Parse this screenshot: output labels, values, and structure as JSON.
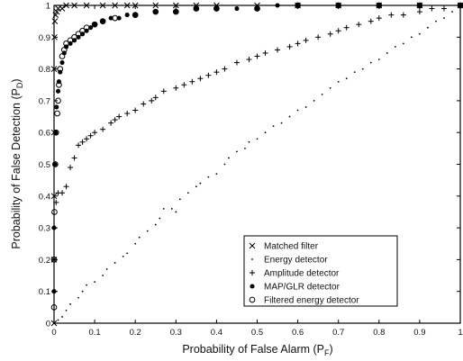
{
  "chart_data": {
    "type": "scatter",
    "title": "",
    "xlabel": {
      "main": "Probability of False Alarm (P",
      "sub": "F",
      "end": ")"
    },
    "ylabel": {
      "main": "Probability of False Detection (P",
      "sub": "D",
      "end": ")"
    },
    "xlim": [
      0,
      1
    ],
    "ylim": [
      0,
      1
    ],
    "grid": false,
    "legend_position": "bottom-right",
    "x_ticks": [
      {
        "v": 0,
        "label": "0"
      },
      {
        "v": 0.1,
        "label": "0.1"
      },
      {
        "v": 0.2,
        "label": "0.2"
      },
      {
        "v": 0.3,
        "label": "0.3"
      },
      {
        "v": 0.4,
        "label": "0.4"
      },
      {
        "v": 0.5,
        "label": "0.5"
      },
      {
        "v": 0.6,
        "label": "0.6"
      },
      {
        "v": 0.7,
        "label": "0.7"
      },
      {
        "v": 0.8,
        "label": "0.8"
      },
      {
        "v": 0.9,
        "label": "0.9"
      },
      {
        "v": 1,
        "label": "1"
      }
    ],
    "y_ticks": [
      {
        "v": 0,
        "label": "0"
      },
      {
        "v": 0.1,
        "label": "0.1"
      },
      {
        "v": 0.2,
        "label": "0.2"
      },
      {
        "v": 0.3,
        "label": "0.3"
      },
      {
        "v": 0.4,
        "label": "0.4"
      },
      {
        "v": 0.5,
        "label": "0.5"
      },
      {
        "v": 0.6,
        "label": "0.6"
      },
      {
        "v": 0.7,
        "label": "0.7"
      },
      {
        "v": 0.8,
        "label": "0.8"
      },
      {
        "v": 0.9,
        "label": "0.9"
      },
      {
        "v": 1,
        "label": "1"
      }
    ],
    "series": [
      {
        "name": "Matched filter",
        "marker": "x",
        "points": [
          [
            0.0,
            0.0
          ],
          [
            0.0,
            0.2
          ],
          [
            0.0,
            0.4
          ],
          [
            0.0,
            0.6
          ],
          [
            0.0,
            0.8
          ],
          [
            0.001,
            0.9
          ],
          [
            0.002,
            0.95
          ],
          [
            0.004,
            0.97
          ],
          [
            0.007,
            0.98
          ],
          [
            0.01,
            0.99
          ],
          [
            0.02,
            0.99
          ],
          [
            0.03,
            1.0
          ],
          [
            0.05,
            1.0
          ],
          [
            0.08,
            1.0
          ],
          [
            0.12,
            1.0
          ],
          [
            0.15,
            1.0
          ],
          [
            0.18,
            1.0
          ],
          [
            0.2,
            1.0
          ],
          [
            0.25,
            1.0
          ],
          [
            0.3,
            1.0
          ],
          [
            0.35,
            1.0
          ],
          [
            0.4,
            1.0
          ],
          [
            0.5,
            1.0
          ],
          [
            0.6,
            1.0
          ],
          [
            0.7,
            1.0
          ],
          [
            0.8,
            1.0
          ],
          [
            0.9,
            1.0
          ],
          [
            1.0,
            1.0
          ]
        ]
      },
      {
        "name": "Energy detector",
        "marker": "dot",
        "points": [
          [
            0.0,
            0.0
          ],
          [
            0.01,
            0.01
          ],
          [
            0.02,
            0.02
          ],
          [
            0.03,
            0.04
          ],
          [
            0.04,
            0.06
          ],
          [
            0.06,
            0.08
          ],
          [
            0.07,
            0.1
          ],
          [
            0.08,
            0.12
          ],
          [
            0.1,
            0.13
          ],
          [
            0.12,
            0.15
          ],
          [
            0.13,
            0.17
          ],
          [
            0.15,
            0.19
          ],
          [
            0.17,
            0.21
          ],
          [
            0.18,
            0.22
          ],
          [
            0.2,
            0.25
          ],
          [
            0.21,
            0.27
          ],
          [
            0.23,
            0.29
          ],
          [
            0.25,
            0.31
          ],
          [
            0.26,
            0.33
          ],
          [
            0.27,
            0.36
          ],
          [
            0.29,
            0.36
          ],
          [
            0.3,
            0.35
          ],
          [
            0.31,
            0.39
          ],
          [
            0.33,
            0.41
          ],
          [
            0.35,
            0.43
          ],
          [
            0.36,
            0.44
          ],
          [
            0.38,
            0.46
          ],
          [
            0.4,
            0.47
          ],
          [
            0.42,
            0.5
          ],
          [
            0.43,
            0.52
          ],
          [
            0.45,
            0.54
          ],
          [
            0.47,
            0.55
          ],
          [
            0.48,
            0.57
          ],
          [
            0.5,
            0.58
          ],
          [
            0.52,
            0.6
          ],
          [
            0.54,
            0.62
          ],
          [
            0.56,
            0.63
          ],
          [
            0.58,
            0.65
          ],
          [
            0.6,
            0.67
          ],
          [
            0.62,
            0.68
          ],
          [
            0.64,
            0.7
          ],
          [
            0.66,
            0.72
          ],
          [
            0.68,
            0.74
          ],
          [
            0.7,
            0.76
          ],
          [
            0.72,
            0.77
          ],
          [
            0.74,
            0.79
          ],
          [
            0.76,
            0.8
          ],
          [
            0.78,
            0.82
          ],
          [
            0.8,
            0.83
          ],
          [
            0.82,
            0.85
          ],
          [
            0.84,
            0.87
          ],
          [
            0.86,
            0.88
          ],
          [
            0.88,
            0.9
          ],
          [
            0.9,
            0.91
          ],
          [
            0.92,
            0.93
          ],
          [
            0.94,
            0.95
          ],
          [
            0.96,
            0.96
          ],
          [
            0.98,
            0.98
          ],
          [
            1.0,
            1.0
          ]
        ]
      },
      {
        "name": "Amplitude detector",
        "marker": "plus",
        "points": [
          [
            0.0,
            0.1
          ],
          [
            0.0,
            0.2
          ],
          [
            0.0,
            0.3
          ],
          [
            0.005,
            0.38
          ],
          [
            0.01,
            0.41
          ],
          [
            0.02,
            0.41
          ],
          [
            0.03,
            0.43
          ],
          [
            0.04,
            0.49
          ],
          [
            0.05,
            0.52
          ],
          [
            0.06,
            0.56
          ],
          [
            0.07,
            0.57
          ],
          [
            0.08,
            0.58
          ],
          [
            0.09,
            0.59
          ],
          [
            0.1,
            0.6
          ],
          [
            0.12,
            0.61
          ],
          [
            0.14,
            0.63
          ],
          [
            0.15,
            0.64
          ],
          [
            0.16,
            0.65
          ],
          [
            0.18,
            0.66
          ],
          [
            0.2,
            0.67
          ],
          [
            0.22,
            0.69
          ],
          [
            0.24,
            0.7
          ],
          [
            0.25,
            0.71
          ],
          [
            0.27,
            0.73
          ],
          [
            0.3,
            0.74
          ],
          [
            0.32,
            0.75
          ],
          [
            0.34,
            0.76
          ],
          [
            0.36,
            0.77
          ],
          [
            0.38,
            0.78
          ],
          [
            0.4,
            0.79
          ],
          [
            0.42,
            0.8
          ],
          [
            0.45,
            0.82
          ],
          [
            0.48,
            0.83
          ],
          [
            0.5,
            0.84
          ],
          [
            0.52,
            0.85
          ],
          [
            0.55,
            0.86
          ],
          [
            0.58,
            0.87
          ],
          [
            0.6,
            0.88
          ],
          [
            0.62,
            0.89
          ],
          [
            0.65,
            0.9
          ],
          [
            0.68,
            0.91
          ],
          [
            0.7,
            0.92
          ],
          [
            0.72,
            0.93
          ],
          [
            0.75,
            0.94
          ],
          [
            0.78,
            0.95
          ],
          [
            0.8,
            0.96
          ],
          [
            0.83,
            0.97
          ],
          [
            0.86,
            0.97
          ],
          [
            0.9,
            0.98
          ],
          [
            0.93,
            0.99
          ],
          [
            0.96,
            0.99
          ],
          [
            1.0,
            1.0
          ]
        ]
      },
      {
        "name": "MAP/GLR detector",
        "marker": "filled-circle",
        "points": [
          [
            0.0,
            0.1
          ],
          [
            0.0,
            0.3
          ],
          [
            0.002,
            0.5
          ],
          [
            0.004,
            0.6
          ],
          [
            0.006,
            0.68
          ],
          [
            0.01,
            0.73
          ],
          [
            0.012,
            0.76
          ],
          [
            0.015,
            0.79
          ],
          [
            0.02,
            0.82
          ],
          [
            0.025,
            0.85
          ],
          [
            0.03,
            0.87
          ],
          [
            0.04,
            0.88
          ],
          [
            0.05,
            0.89
          ],
          [
            0.06,
            0.9
          ],
          [
            0.07,
            0.91
          ],
          [
            0.08,
            0.92
          ],
          [
            0.09,
            0.93
          ],
          [
            0.1,
            0.94
          ],
          [
            0.12,
            0.95
          ],
          [
            0.14,
            0.96
          ],
          [
            0.16,
            0.96
          ],
          [
            0.18,
            0.97
          ],
          [
            0.2,
            0.97
          ],
          [
            0.25,
            0.98
          ],
          [
            0.3,
            0.98
          ],
          [
            0.35,
            0.99
          ],
          [
            0.4,
            0.99
          ],
          [
            0.45,
            0.99
          ],
          [
            0.5,
            0.99
          ],
          [
            0.55,
            1.0
          ],
          [
            0.6,
            1.0
          ],
          [
            0.7,
            1.0
          ],
          [
            0.8,
            1.0
          ],
          [
            0.9,
            1.0
          ],
          [
            1.0,
            1.0
          ]
        ]
      },
      {
        "name": "Filtered energy detector",
        "marker": "open-circle",
        "points": [
          [
            0.0,
            0.05
          ],
          [
            0.0,
            0.2
          ],
          [
            0.001,
            0.35
          ],
          [
            0.003,
            0.5
          ],
          [
            0.005,
            0.6
          ],
          [
            0.008,
            0.66
          ],
          [
            0.01,
            0.7
          ],
          [
            0.012,
            0.75
          ],
          [
            0.015,
            0.8
          ],
          [
            0.02,
            0.84
          ],
          [
            0.025,
            0.86
          ],
          [
            0.03,
            0.88
          ],
          [
            0.04,
            0.89
          ],
          [
            0.05,
            0.9
          ],
          [
            0.06,
            0.91
          ],
          [
            0.07,
            0.92
          ],
          [
            0.08,
            0.93
          ],
          [
            0.1,
            0.94
          ],
          [
            0.12,
            0.95
          ],
          [
            0.15,
            0.96
          ],
          [
            0.2,
            0.97
          ],
          [
            0.25,
            0.98
          ],
          [
            0.3,
            0.98
          ],
          [
            0.35,
            0.99
          ],
          [
            0.4,
            0.99
          ],
          [
            0.5,
            0.99
          ],
          [
            0.6,
            1.0
          ],
          [
            0.7,
            1.0
          ],
          [
            0.8,
            1.0
          ],
          [
            0.9,
            1.0
          ],
          [
            1.0,
            1.0
          ]
        ]
      }
    ],
    "legend": [
      {
        "name": "Matched filter",
        "marker": "x"
      },
      {
        "name": "Energy detector",
        "marker": "dot"
      },
      {
        "name": "Amplitude detector",
        "marker": "plus"
      },
      {
        "name": "MAP/GLR detector",
        "marker": "filled-circle"
      },
      {
        "name": "Filtered energy detector",
        "marker": "open-circle"
      }
    ]
  }
}
